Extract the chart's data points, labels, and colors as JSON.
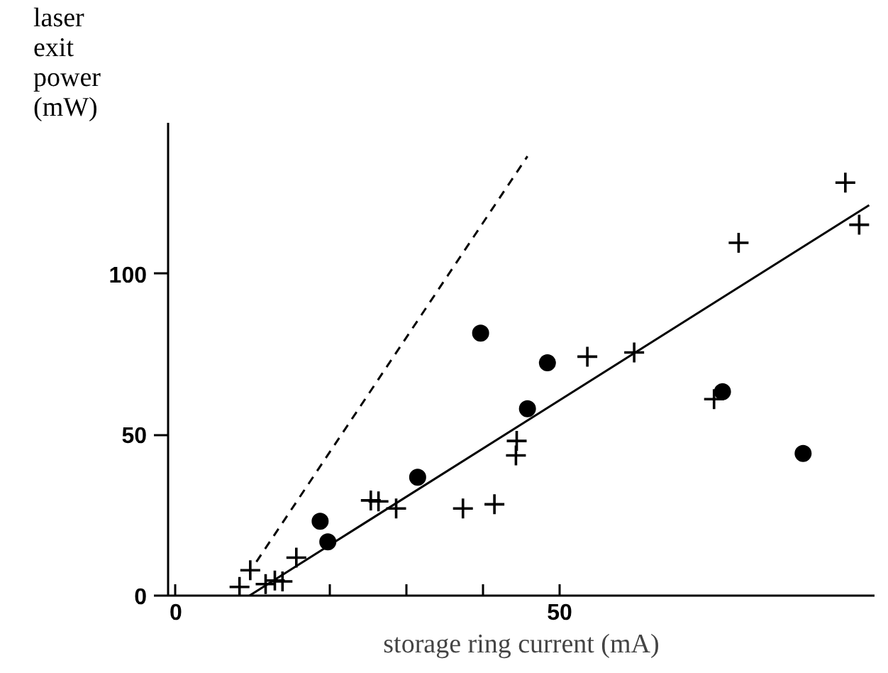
{
  "chart_data": {
    "type": "scatter",
    "xlabel": "storage ring current (mA)",
    "ylabel": "laser exit power (mW)",
    "xlim": [
      -1,
      91
    ],
    "ylim": [
      0,
      147
    ],
    "xticks": [
      0,
      {
        "value": 20,
        "label": null
      },
      {
        "value": 30,
        "label": null
      },
      {
        "value": 40,
        "label": null
      },
      50
    ],
    "yticks": [
      0,
      50,
      100
    ],
    "grid": false,
    "series": [
      {
        "type": "scatter",
        "marker": "cross",
        "color": "#000000",
        "x": [
          8.3,
          9.7,
          11.7,
          12.9,
          13.9,
          15.7,
          25.4,
          26.4,
          28.7,
          37.4,
          41.5,
          44.4,
          44.3,
          53.6,
          59.7,
          70.1,
          73.3,
          87.2,
          89.0
        ],
        "values": [
          2.7,
          7.9,
          3.6,
          4.7,
          4.4,
          11.8,
          29.6,
          29.3,
          27.1,
          27.1,
          28.4,
          48.1,
          43.6,
          74.3,
          75.6,
          61.1,
          109.7,
          128.4,
          115.3
        ]
      },
      {
        "type": "scatter",
        "marker": "circle",
        "color": "#000000",
        "x": [
          18.8,
          19.8,
          31.5,
          39.7,
          45.8,
          48.4,
          71.2,
          81.7
        ],
        "values": [
          23.1,
          16.7,
          36.8,
          81.6,
          58.1,
          72.4,
          63.4,
          44.2
        ]
      },
      {
        "type": "line",
        "line_style": "solid",
        "color": "#000000",
        "x": [
          9.6,
          90.3
        ],
        "values": [
          0,
          121.4
        ]
      },
      {
        "type": "line",
        "line_style": "dashed",
        "color": "#000000",
        "x": [
          10.5,
          45.8
        ],
        "values": [
          10.5,
          136.6
        ]
      }
    ]
  }
}
